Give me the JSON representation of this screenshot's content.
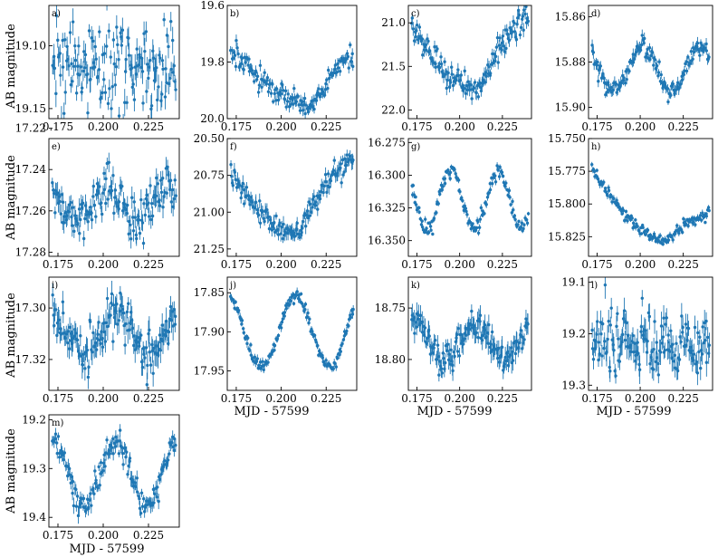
{
  "figure": {
    "ylabel": "AB magnitude",
    "xlabel": "MJD - 57599",
    "marker_color": "#1f77b4"
  },
  "chart_data": [
    {
      "type": "scatter",
      "panel": "a)",
      "x_range": [
        0.17,
        0.242
      ],
      "ylim": [
        19.158,
        19.068
      ],
      "y_inverted": true,
      "yticks": [
        19.1,
        19.15
      ],
      "ytick_labels": [
        "19.10",
        "19.15"
      ],
      "xticks": [
        0.175,
        0.2,
        0.225
      ],
      "xtick_labels": [
        "0.175",
        "0.200",
        "0.225"
      ],
      "pattern": "noise",
      "base": 19.115,
      "amp": 0.003,
      "scatter": 0.018,
      "error": 0.008,
      "periods": 1.5,
      "phase": 0,
      "grid": false,
      "legend": "none"
    },
    {
      "type": "scatter",
      "panel": "b)",
      "x_range": [
        0.17,
        0.242
      ],
      "ylim": [
        20.0,
        19.6
      ],
      "y_inverted": true,
      "yticks": [
        19.6,
        19.8,
        20.0
      ],
      "ytick_labels": [
        "19.6",
        "19.8",
        "20.0"
      ],
      "xticks": [
        0.175,
        0.2,
        0.225
      ],
      "xtick_labels": [
        "0.175",
        "0.200",
        "0.225"
      ],
      "pattern": "vshape",
      "min_x": 0.218,
      "y_at_start": 19.75,
      "y_at_min": 19.95,
      "y_at_end": 19.78,
      "scatter": 0.02,
      "error": 0.015,
      "grid": false,
      "legend": "none"
    },
    {
      "type": "scatter",
      "panel": "c)",
      "x_range": [
        0.17,
        0.242
      ],
      "ylim": [
        22.1,
        20.8
      ],
      "y_inverted": true,
      "yticks": [
        21.0,
        21.5,
        22.0
      ],
      "ytick_labels": [
        "21.0",
        "21.5",
        "22.0"
      ],
      "xticks": [
        0.175,
        0.2,
        0.225
      ],
      "xtick_labels": [
        "0.175",
        "0.200",
        "0.225"
      ],
      "pattern": "vshape",
      "min_x": 0.212,
      "y_at_start": 21.0,
      "y_at_min": 21.75,
      "y_at_end": 20.95,
      "scatter": 0.08,
      "error": 0.06,
      "grid": false,
      "legend": "none"
    },
    {
      "type": "scatter",
      "panel": "d)",
      "x_range": [
        0.17,
        0.242
      ],
      "ylim": [
        15.905,
        15.855
      ],
      "y_inverted": true,
      "yticks": [
        15.86,
        15.88,
        15.9
      ],
      "ytick_labels": [
        "15.86",
        "15.88",
        "15.90"
      ],
      "xticks": [
        0.175,
        0.2,
        0.225
      ],
      "xtick_labels": [
        "0.175",
        "0.200",
        "0.225"
      ],
      "pattern": "sine",
      "base": 15.883,
      "amp": 0.01,
      "scatter": 0.002,
      "error": 0.002,
      "periods": 2.15,
      "phase": -1.2,
      "grid": false,
      "legend": "none"
    },
    {
      "type": "scatter",
      "panel": "e)",
      "x_range": [
        0.17,
        0.242
      ],
      "ylim": [
        17.282,
        17.225
      ],
      "y_inverted": true,
      "yticks": [
        17.22,
        17.24,
        17.26,
        17.28
      ],
      "ytick_labels": [
        "17.22",
        "17.24",
        "17.26",
        "17.28"
      ],
      "xticks": [
        0.175,
        0.2,
        0.225
      ],
      "xtick_labels": [
        "0.175",
        "0.200",
        "0.225"
      ],
      "pattern": "sine",
      "base": 17.257,
      "amp": 0.008,
      "scatter": 0.005,
      "error": 0.004,
      "periods": 2.2,
      "phase": -1.4,
      "grid": false,
      "legend": "none"
    },
    {
      "type": "scatter",
      "panel": "f)",
      "x_range": [
        0.17,
        0.242
      ],
      "ylim": [
        21.3,
        20.5
      ],
      "y_inverted": true,
      "yticks": [
        20.5,
        20.75,
        21.0,
        21.25
      ],
      "ytick_labels": [
        "20.50",
        "20.75",
        "21.00",
        "21.25"
      ],
      "xticks": [
        0.175,
        0.2,
        0.225
      ],
      "xtick_labels": [
        "0.175",
        "0.200",
        "0.225"
      ],
      "pattern": "vshape",
      "min_x": 0.21,
      "y_at_start": 20.7,
      "y_at_min": 21.15,
      "y_at_end": 20.65,
      "scatter": 0.04,
      "error": 0.04,
      "grid": false,
      "legend": "none"
    },
    {
      "type": "scatter",
      "panel": "g)",
      "x_range": [
        0.17,
        0.242
      ],
      "ylim": [
        16.362,
        16.272
      ],
      "y_inverted": true,
      "yticks": [
        16.275,
        16.3,
        16.325,
        16.35
      ],
      "ytick_labels": [
        "16.275",
        "16.300",
        "16.325",
        "16.350"
      ],
      "xticks": [
        0.175,
        0.2,
        0.225
      ],
      "xtick_labels": [
        "0.175",
        "0.200",
        "0.225"
      ],
      "pattern": "sine",
      "base": 16.318,
      "amp": 0.022,
      "scatter": 0.003,
      "error": 0.002,
      "periods": 2.6,
      "phase": -0.9,
      "grid": false,
      "legend": "none"
    },
    {
      "type": "scatter",
      "panel": "h)",
      "x_range": [
        0.17,
        0.242
      ],
      "ylim": [
        15.84,
        15.75
      ],
      "y_inverted": true,
      "yticks": [
        15.75,
        15.775,
        15.8,
        15.825
      ],
      "ytick_labels": [
        "15.750",
        "15.775",
        "15.800",
        "15.825"
      ],
      "xticks": [
        0.175,
        0.2,
        0.225
      ],
      "xtick_labels": [
        "0.175",
        "0.200",
        "0.225"
      ],
      "pattern": "vshape",
      "min_x": 0.215,
      "y_at_start": 15.768,
      "y_at_min": 15.828,
      "y_at_end": 15.808,
      "scatter": 0.002,
      "error": 0.002,
      "grid": false,
      "legend": "none"
    },
    {
      "type": "scatter",
      "panel": "i)",
      "x_range": [
        0.17,
        0.242
      ],
      "ylim": [
        17.332,
        17.288
      ],
      "y_inverted": true,
      "yticks": [
        17.3,
        17.32
      ],
      "ytick_labels": [
        "17.30",
        "17.32"
      ],
      "xticks": [
        0.175,
        0.2,
        0.225
      ],
      "xtick_labels": [
        "0.175",
        "0.200",
        "0.225"
      ],
      "pattern": "sine",
      "base": 17.31,
      "amp": 0.008,
      "scatter": 0.004,
      "error": 0.004,
      "periods": 2.0,
      "phase": -1.9,
      "grid": false,
      "legend": "none"
    },
    {
      "type": "scatter",
      "panel": "j)",
      "x_range": [
        0.17,
        0.242
      ],
      "ylim": [
        17.975,
        17.83
      ],
      "y_inverted": true,
      "yticks": [
        17.85,
        17.9,
        17.95
      ],
      "ytick_labels": [
        "17.85",
        "17.90",
        "17.95"
      ],
      "xticks": [
        0.175,
        0.2,
        0.225
      ],
      "xtick_labels": [
        "0.175",
        "0.200",
        "0.225"
      ],
      "pattern": "sine",
      "base": 17.9,
      "amp": 0.045,
      "scatter": 0.004,
      "error": 0.004,
      "periods": 1.9,
      "phase": -1.57,
      "grid": false,
      "legend": "none"
    },
    {
      "type": "scatter",
      "panel": "k)",
      "x_range": [
        0.17,
        0.242
      ],
      "ylim": [
        18.83,
        18.72
      ],
      "y_inverted": true,
      "yticks": [
        18.75,
        18.8
      ],
      "ytick_labels": [
        "18.75",
        "18.80"
      ],
      "xticks": [
        0.175,
        0.2,
        0.225
      ],
      "xtick_labels": [
        "0.175",
        "0.200",
        "0.225"
      ],
      "pattern": "sine",
      "base": 18.782,
      "amp": 0.016,
      "scatter": 0.008,
      "error": 0.008,
      "periods": 2.1,
      "phase": -2.4,
      "grid": false,
      "legend": "none"
    },
    {
      "type": "scatter",
      "panel": "l)",
      "x_range": [
        0.17,
        0.242
      ],
      "ylim": [
        19.31,
        19.09
      ],
      "y_inverted": true,
      "yticks": [
        19.1,
        19.2,
        19.3
      ],
      "ytick_labels": [
        "19.1",
        "19.2",
        "19.3"
      ],
      "xticks": [
        0.175,
        0.2,
        0.225
      ],
      "xtick_labels": [
        "0.175",
        "0.200",
        "0.225"
      ],
      "pattern": "sine",
      "base": 19.22,
      "amp": 0.018,
      "scatter": 0.03,
      "error": 0.02,
      "periods": 6.0,
      "phase": 0,
      "grid": false,
      "legend": "none"
    },
    {
      "type": "scatter",
      "panel": "m)",
      "x_range": [
        0.17,
        0.242
      ],
      "ylim": [
        19.42,
        19.19
      ],
      "y_inverted": true,
      "yticks": [
        19.2,
        19.3,
        19.4
      ],
      "ytick_labels": [
        "19.2",
        "19.3",
        "19.4"
      ],
      "xticks": [
        0.175,
        0.2,
        0.225
      ],
      "xtick_labels": [
        "0.175",
        "0.200",
        "0.225"
      ],
      "pattern": "sine",
      "base": 19.31,
      "amp": 0.065,
      "scatter": 0.012,
      "error": 0.012,
      "periods": 2.1,
      "phase": -2.0,
      "grid": false,
      "legend": "none"
    }
  ]
}
